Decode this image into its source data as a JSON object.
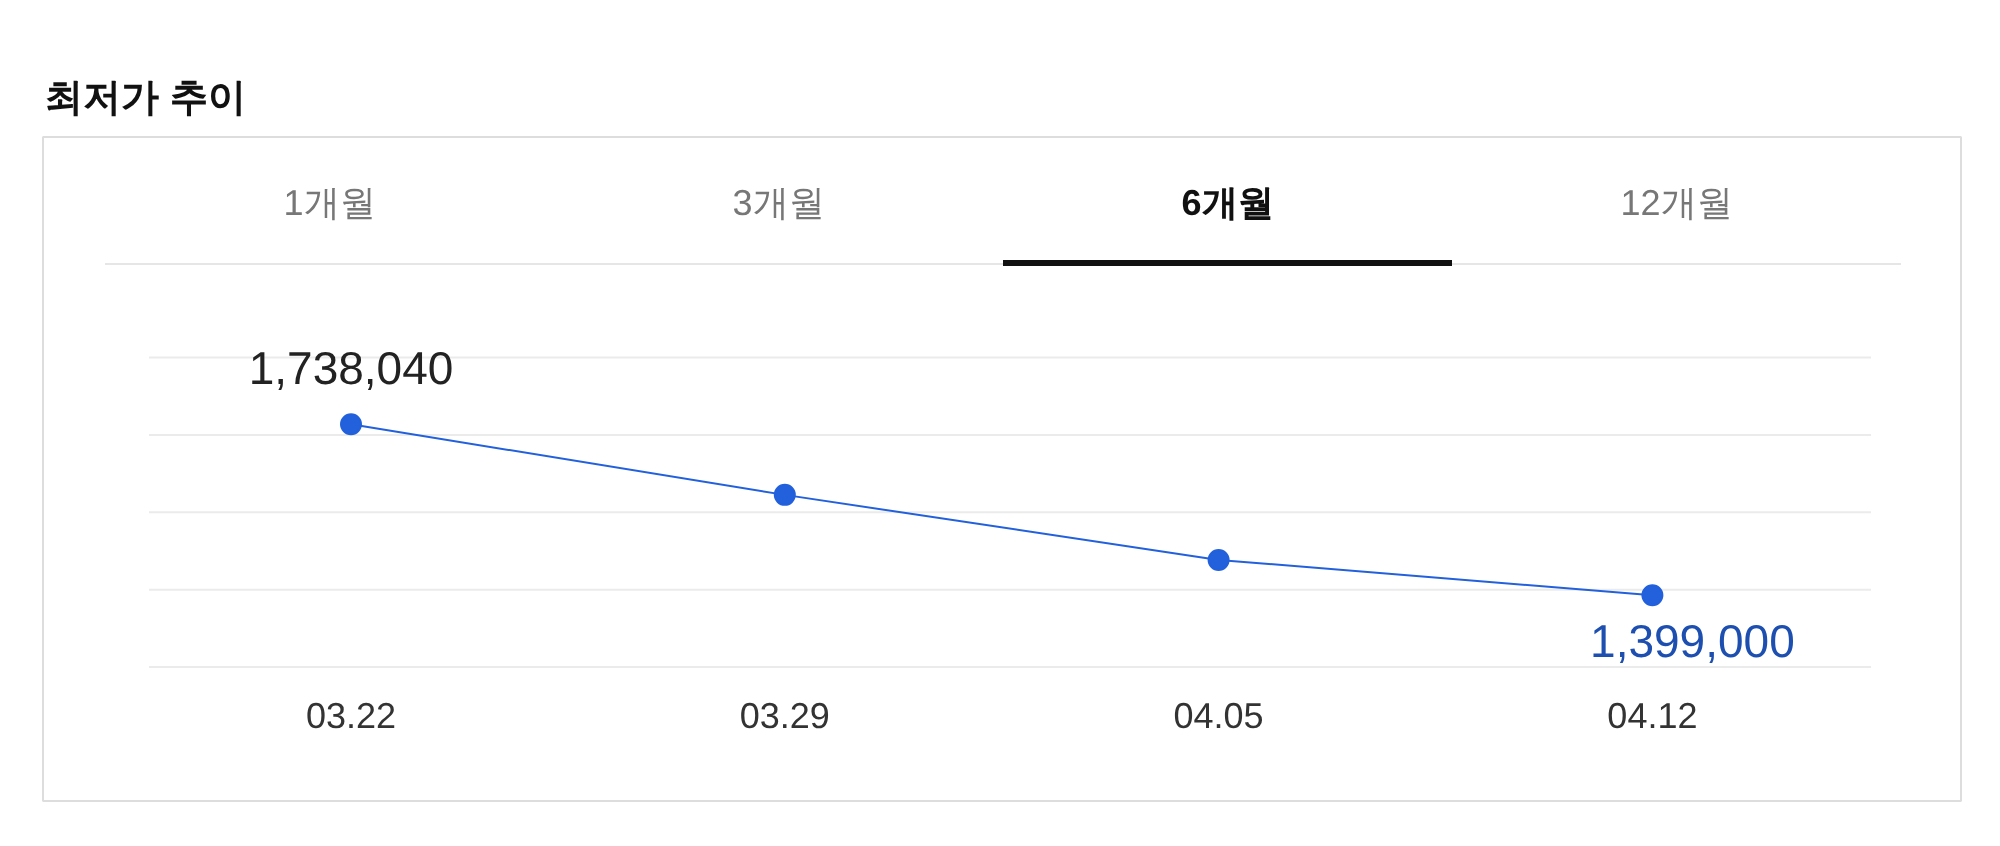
{
  "chart_data": {
    "type": "line",
    "title": "최저가 추이",
    "annotations": [
      "1개월",
      "3개월",
      "6개월",
      "12개월"
    ],
    "categories": [
      "03.22",
      "03.29",
      "04.05",
      "04.12"
    ],
    "values": [
      1738040,
      1598000,
      1469000,
      1399000
    ],
    "color": "#2260dc",
    "value_labels": [
      "1,738,040",
      null,
      null,
      "1,399,000"
    ],
    "grid": "y",
    "marker": "circle",
    "line_style": "solid",
    "tick_labels": "x"
  }
}
